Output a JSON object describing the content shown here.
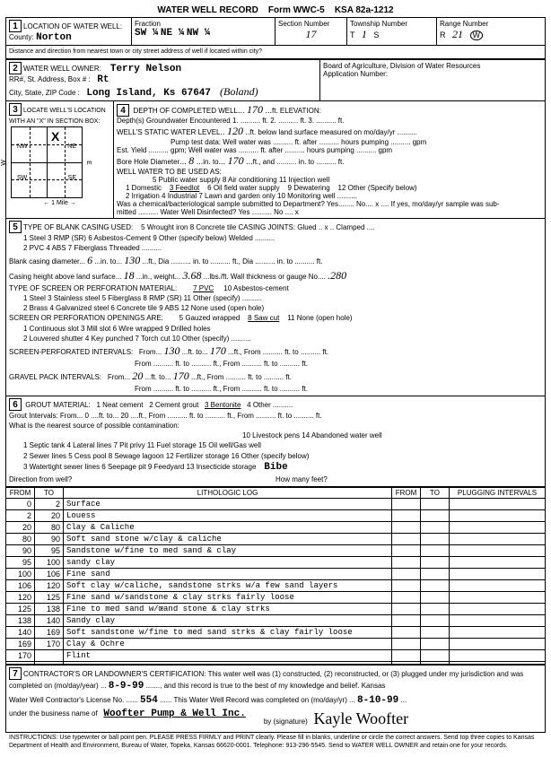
{
  "header": {
    "title": "WATER WELL RECORD",
    "form": "Form WWC-5",
    "ksa": "KSA 82a-1212"
  },
  "loc": {
    "county_lbl": "County:",
    "county": "Norton",
    "fraction_lbl": "Fraction",
    "f1": "SW ¼",
    "f2": "NE ¼",
    "f3": "NW ¼",
    "secnum_lbl": "Section Number",
    "secnum": "17",
    "twp_lbl": "Township Number",
    "twp_t": "T",
    "twp": "1",
    "twp_s": "S",
    "range_lbl": "Range Number",
    "range_r": "R",
    "range": "21",
    "range_w": "W",
    "dist": "Distance and direction from nearest town or city street address of well if located within city?"
  },
  "owner": {
    "title": "WATER WELL OWNER:",
    "name": "Terry Nelson",
    "rr_lbl": "RR#, St. Address, Box # :",
    "rr": "Rt",
    "city_lbl": "City, State, ZIP Code :",
    "city": "Long Island, Ks 67647",
    "paren": "(Boland)",
    "board": "Board of Agriculture, Division of Water Resources",
    "app_lbl": "Application Number:"
  },
  "box3": {
    "title": "LOCATE WELL'S LOCATION WITH AN \"X\" IN SECTION BOX:"
  },
  "box4": {
    "depth_lbl": "DEPTH OF COMPLETED WELL",
    "depth": "170",
    "elev_lbl": "ft. ELEVATION:",
    "gw": "Depth(s) Groundwater Encountered  1. .......... ft.  2. .......... ft.  3. .......... ft.",
    "static_lbl": "WELL'S STATIC WATER LEVEL",
    "static": "120",
    "static_sfx": "ft. below land surface measured on mo/day/yr ..........",
    "pump": "Pump test data: Well water was .......... ft. after .......... hours pumping .......... gpm",
    "est": "Est. Yield .......... gpm; Well water was .......... ft. after .......... hours pumping .......... gpm",
    "bore_lbl": "Bore Hole Diameter",
    "bore": "8",
    "bore_mid": "in. to",
    "bore2": "170",
    "bore_sfx": "ft., and .......... in. to .......... ft.",
    "use_lbl": "WELL WATER TO BE USED AS:",
    "use_opts": "5 Public water supply     8 Air conditioning     11 Injection well",
    "use_opts2": "1 Domestic     3 Feedlot     6 Oil field water supply     9 Dewatering     12 Other (Specify below)",
    "use_opts3": "2 Irrigation     4 Industrial     7 Lawn and garden only     10 Monitoring well ..........",
    "chem": "Was a chemical/bacteriological sample submitted to Department? Yes........ No.... x .... If yes, mo/day/yr sample was sub-",
    "mitted": "mitted ..........                                          Water Well Disinfected? Yes ..........  No .... x"
  },
  "box5": {
    "title": "TYPE OF BLANK CASING USED:",
    "r1": "5 Wrought iron        8 Concrete tile            CASING JOINTS: Glued .. x .. Clamped ....",
    "r2": "1 Steel        3 RMP (SR)        6 Asbestos-Cement     9 Other (specify below)                    Welded ..........",
    "r3": "2 PVC          4 ABS             7 Fiberglass                                                      Threaded ..........",
    "diam_lbl": "Blank casing diameter",
    "diam": "6",
    "diam_to": "in. to",
    "diam2": "130",
    "diam_sfx": "ft., Dia .......... in. to .......... ft., Dia .......... in. to .......... ft.",
    "ht_lbl": "Casing height above land surface",
    "ht": "18",
    "wt_lbl": "in., weight",
    "wt": "3.68",
    "wt_sfx": "lbs./ft. Wall thickness or gauge No.",
    "gauge": ".280",
    "screen_title": "TYPE OF SCREEN OR PERFORATION MATERIAL:",
    "sr1": "7 PVC          10 Asbestos-cement",
    "sr2": "1 Steel        3 Stainless steel     5 Fiberglass     8 RMP (SR)     11 Other (specify) ..........",
    "sr3": "2 Brass        4 Galvanized steel    6 Concrete tile  9 ABS          12 None used (open hole)",
    "open_title": "SCREEN OR PERFORATION OPENINGS ARE:",
    "or1": "5 Gauzed wrapped     8 Saw cut        11 None (open hole)",
    "or2": "1 Continuous slot    3 Mill slot       6 Wire wrapped      9 Drilled holes",
    "or3": "2 Louvered shutter   4 Key punched     7 Torch cut         10 Other (specify) ..........",
    "spi_lbl": "SCREEN-PERFORATED INTERVALS:",
    "spi_from": "From",
    "spi_f": "130",
    "spi_to": "ft. to",
    "spi_t": "170",
    "spi_sfx": "ft., From .......... ft. to .......... ft.",
    "gpi_lbl": "GRAVEL PACK INTERVALS:",
    "gpi_f": "20",
    "gpi_t": "170"
  },
  "box6": {
    "title": "GROUT MATERIAL:     1 Neat cement     2 Cement grout     3 Bentonite     4 Other ..........",
    "gi": "Grout Intervals: From... 0 ....ft. to... 20 ....ft., From .......... ft. to .......... ft., From .......... ft. to .......... ft.",
    "contam_lbl": "What is the nearest source of possible contamination:",
    "c1": "10 Livestock pens        14 Abandoned water well",
    "c2": "1 Septic tank     4 Lateral lines     7 Pit privy          11 Fuel storage         15 Oil well/Gas well",
    "c3": "2 Sewer lines     5 Cess pool         8 Sewage lagoon      12 Fertilizer storage   16 Other (specify below)",
    "c4": "3 Watertight sewer lines  6 Seepage pit  9 Feedyard          13 Insecticide storage",
    "c4v": "Bibe",
    "dir_lbl": "Direction from well?",
    "hm_lbl": "How many feet?"
  },
  "litho": {
    "h_from": "FROM",
    "h_to": "TO",
    "h_log": "LITHOLOGIC LOG",
    "h_plug": "PLUGGING INTERVALS",
    "rows": [
      {
        "f": "0",
        "t": "2",
        "d": "Surface"
      },
      {
        "f": "2",
        "t": "20",
        "d": "Louess"
      },
      {
        "f": "20",
        "t": "80",
        "d": "Clay & Caliche"
      },
      {
        "f": "80",
        "t": "90",
        "d": "Soft sand stone w/clay & caliche"
      },
      {
        "f": "90",
        "t": "95",
        "d": "Sandstone w/fine to med sand & clay"
      },
      {
        "f": "95",
        "t": "100",
        "d": "sandy clay"
      },
      {
        "f": "100",
        "t": "106",
        "d": "Fine sand"
      },
      {
        "f": "106",
        "t": "120",
        "d": "Soft clay w/caliche, sandstone strks w/a few sand layers"
      },
      {
        "f": "120",
        "t": "125",
        "d": "Fine sand w/sandstone & clay strks fairly loose"
      },
      {
        "f": "125",
        "t": "138",
        "d": "Fine to med sand w/œand stone & clay strks"
      },
      {
        "f": "138",
        "t": "140",
        "d": "Sandy clay"
      },
      {
        "f": "140",
        "t": "169",
        "d": "Soft sandstone w/fine to med sand strks & clay fairly loose"
      },
      {
        "f": "169",
        "t": "170",
        "d": "Clay & Ochre"
      },
      {
        "f": "170",
        "t": "",
        "d": "Flint"
      },
      {
        "f": "",
        "t": "",
        "d": ""
      }
    ]
  },
  "box7": {
    "cert": "CONTRACTOR'S OR LANDOWNER'S CERTIFICATION: This water well was (1) constructed, (2) reconstructed, or (3) plugged under my jurisdiction and was",
    "completed_lbl": "completed on (mo/day/year)",
    "completed": "8-9-99",
    "cert2": "and this record is true to the best of my knowledge and belief. Kansas",
    "lic_lbl": "Water Well Contractor's License No.",
    "lic": "554",
    "rec_lbl": "This Water Well Record was completed on (mo/day/yr)",
    "rec": "8-10-99",
    "bus_lbl": "under the business name of",
    "bus": "Woofter Pump & Well Inc.",
    "by_lbl": "by (signature)",
    "sig": "Kayle Woofter"
  },
  "footer": "INSTRUCTIONS: Use typewriter or ball point pen. PLEASE PRESS FIRMLY and PRINT clearly. Please fill in blanks, underline or circle the correct answers. Send top three copies to Kansas Department of Health and Environment, Bureau of Water, Topeka, Kansas 66620-0001. Telephone: 913-296-5545. Send to WATER WELL OWNER and retain one for your records."
}
